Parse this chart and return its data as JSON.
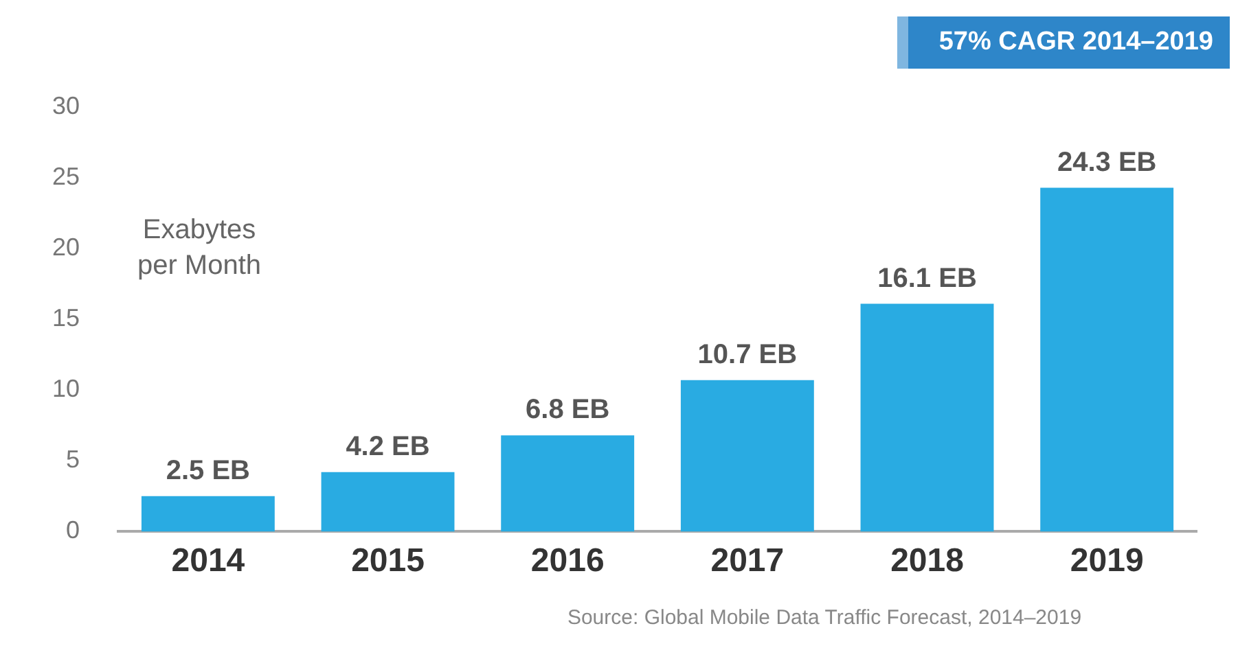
{
  "chart_data": {
    "type": "bar",
    "title": "57% CAGR 2014–2019",
    "ylabel": "Exabytes\nper Month",
    "categories": [
      "2014",
      "2015",
      "2016",
      "2017",
      "2018",
      "2019"
    ],
    "values": [
      2.5,
      4.2,
      6.8,
      10.7,
      16.1,
      24.3
    ],
    "value_labels": [
      "2.5 EB",
      "4.2 EB",
      "6.8 EB",
      "10.7 EB",
      "16.1 EB",
      "24.3 EB"
    ],
    "color": "#29abe2",
    "ylim": [
      0,
      30
    ],
    "yticks": [
      0,
      5,
      10,
      15,
      20,
      25,
      30
    ],
    "grid": false,
    "legend": false,
    "annotations": [
      "Source: Global Mobile Data Traffic Forecast, 2014–2019"
    ]
  }
}
